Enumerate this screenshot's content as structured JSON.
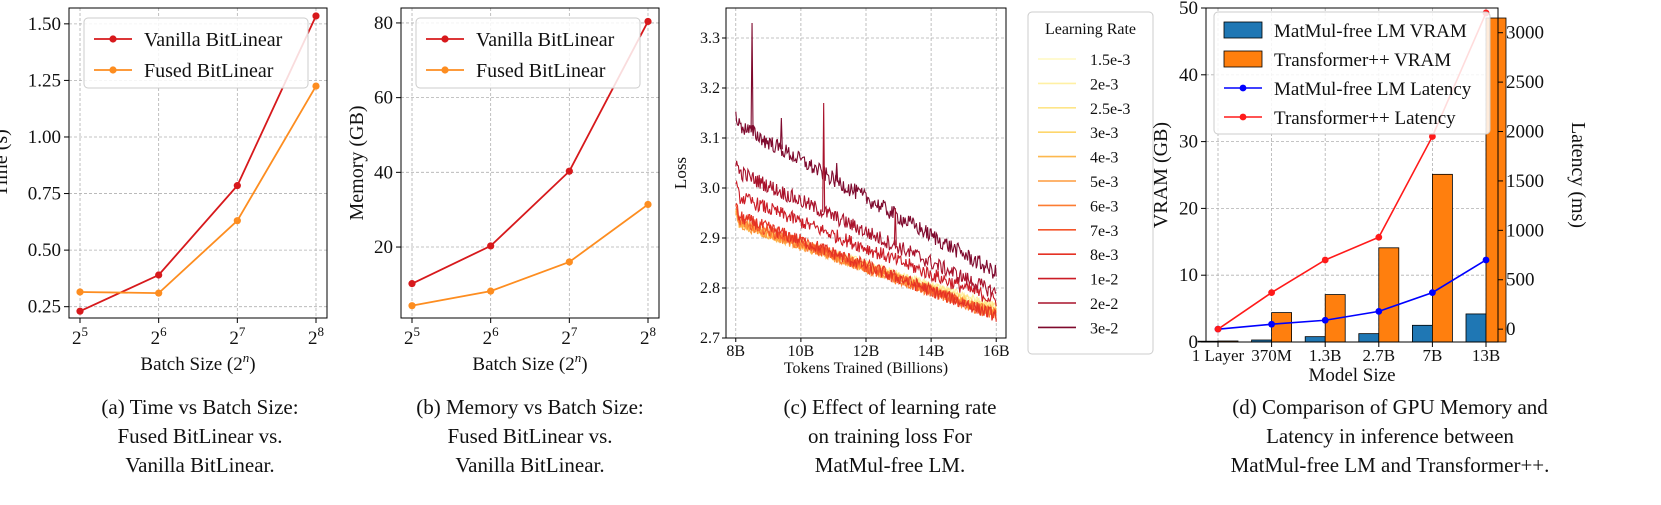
{
  "captions": [
    [
      "(a) Time vs Batch Size:",
      "Fused BitLinear vs.",
      "Vanilla BitLinear."
    ],
    [
      "(b) Memory vs Batch Size:",
      "Fused BitLinear vs.",
      "Vanilla BitLinear."
    ],
    [
      "(c) Effect of learning rate",
      "on training loss For",
      "MatMul-free LM."
    ],
    [
      "(d) Comparison of GPU Memory and",
      "Latency in inference between",
      "MatMul-free LM and Transformer++."
    ]
  ],
  "chart_data": [
    {
      "type": "line",
      "ylabel": "Time (s)",
      "xlabel": "Batch Size (2ⁿ)",
      "x": [
        5,
        6,
        7,
        8
      ],
      "xticks": [
        "2⁵",
        "2⁶",
        "2⁷",
        "2⁸"
      ],
      "ylim": [
        0.2,
        1.57
      ],
      "yticks": [
        "0.25",
        "0.50",
        "0.75",
        "1.00",
        "1.25",
        "1.50"
      ],
      "series": [
        {
          "name": "Vanilla BitLinear",
          "color": "#d7191c",
          "values": [
            0.23,
            0.39,
            0.785,
            1.535
          ]
        },
        {
          "name": "Fused BitLinear",
          "color": "#fd8d20",
          "values": [
            0.315,
            0.31,
            0.63,
            1.225
          ]
        }
      ]
    },
    {
      "type": "line",
      "ylabel": "Memory (GB)",
      "xlabel": "Batch Size (2ⁿ)",
      "x": [
        5,
        6,
        7,
        8
      ],
      "xticks": [
        "2⁵",
        "2⁶",
        "2⁷",
        "2⁸"
      ],
      "ylim": [
        1,
        84
      ],
      "yticks": [
        "20",
        "40",
        "60",
        "80"
      ],
      "series": [
        {
          "name": "Vanilla BitLinear",
          "color": "#d7191c",
          "values": [
            10.2,
            20.3,
            40.3,
            80.4
          ]
        },
        {
          "name": "Fused BitLinear",
          "color": "#fd8d20",
          "values": [
            4.3,
            8.2,
            16.0,
            31.4
          ]
        }
      ]
    },
    {
      "type": "line",
      "ylabel": "Loss",
      "xlabel": "Tokens Trained (Billions)",
      "xlim": [
        7.7,
        16.3
      ],
      "ylim": [
        2.7,
        3.36
      ],
      "xticks": [
        "8B",
        "10B",
        "12B",
        "14B",
        "16B"
      ],
      "yticks": [
        "2.7",
        "2.8",
        "2.9",
        "3.0",
        "3.1",
        "3.2",
        "3.3"
      ],
      "legend_title": "Learning Rate",
      "series": [
        {
          "name": "1.5e-3",
          "color": "#fff8c0",
          "start": 2.93,
          "end": 2.76
        },
        {
          "name": "2e-3",
          "color": "#fff0a4",
          "start": 2.935,
          "end": 2.765
        },
        {
          "name": "2.5e-3",
          "color": "#fee588",
          "start": 2.935,
          "end": 2.76
        },
        {
          "name": "3e-3",
          "color": "#fed66c",
          "start": 2.93,
          "end": 2.755
        },
        {
          "name": "4e-3",
          "color": "#fdb84e",
          "start": 2.93,
          "end": 2.75
        },
        {
          "name": "5e-3",
          "color": "#fd9b3e",
          "start": 2.93,
          "end": 2.75
        },
        {
          "name": "6e-3",
          "color": "#fc7c32",
          "start": 2.935,
          "end": 2.745
        },
        {
          "name": "7e-3",
          "color": "#f5552a",
          "start": 2.94,
          "end": 2.745
        },
        {
          "name": "8e-3",
          "color": "#e53224",
          "start": 2.945,
          "end": 2.745
        },
        {
          "name": "1e-2",
          "color": "#cb1c26",
          "start": 2.985,
          "end": 2.775
        },
        {
          "name": "2e-2",
          "color": "#a9132c",
          "start": 3.035,
          "end": 2.79
        },
        {
          "name": "3e-2",
          "color": "#7f0a2e",
          "start": 3.13,
          "end": 2.83
        }
      ]
    },
    {
      "type": "bar",
      "ylabel": "VRAM (GB)",
      "y2label": "Latency (ms)",
      "xlabel": "Model Size",
      "categories": [
        "1 Layer",
        "370M",
        "1.3B",
        "2.7B",
        "7B",
        "13B"
      ],
      "ylim": [
        0,
        50
      ],
      "y2lim": [
        -130,
        3250
      ],
      "yticks": [
        "0",
        "10",
        "20",
        "30",
        "40",
        "50"
      ],
      "y2ticks": [
        "0",
        "500",
        "1000",
        "1500",
        "2000",
        "2500",
        "3000"
      ],
      "series": [
        {
          "name": "MatMul-free LM VRAM",
          "color": "#1f77b4",
          "axis": "left",
          "kind": "bar",
          "values": [
            0.12,
            0.3,
            0.8,
            1.25,
            2.5,
            4.2
          ]
        },
        {
          "name": "Transformer++ VRAM",
          "color": "#ff7f0e",
          "axis": "left",
          "kind": "bar",
          "values": [
            0.15,
            4.4,
            7.1,
            14.1,
            25.1,
            48.5
          ]
        },
        {
          "name": "MatMul-free LM Latency",
          "color": "#0000ff",
          "axis": "right",
          "kind": "line",
          "values": [
            0,
            50,
            90,
            180,
            370,
            700
          ]
        },
        {
          "name": "Transformer++ Latency",
          "color": "#ff1a1a",
          "axis": "right",
          "kind": "line",
          "values": [
            0,
            370,
            700,
            930,
            1950,
            3200
          ]
        }
      ]
    }
  ]
}
